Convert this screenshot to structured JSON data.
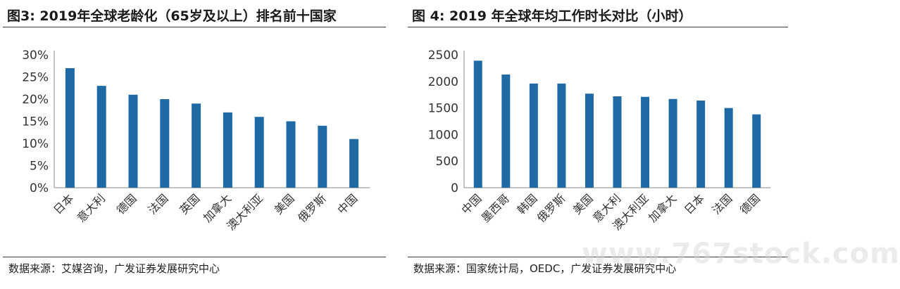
{
  "panels": [
    {
      "title": "图3:  2019年全球老龄化（65岁及以上）排名前十国家",
      "source": "数据来源：艾媒咨询，广发证券发展研究中心"
    },
    {
      "title": "图 4:  2019 年全球年均工作时长对比（小时）",
      "source": "数据来源：国家统计局，OEDC，广发证券发展研究中心"
    }
  ],
  "watermark": "www.767stock.com",
  "chart_data": [
    {
      "type": "bar",
      "categories": [
        "日本",
        "意大利",
        "德国",
        "法国",
        "英国",
        "加拿大",
        "澳大利亚",
        "美国",
        "俄罗斯",
        "中国"
      ],
      "values": [
        27,
        23,
        21,
        20,
        19,
        17,
        16,
        15,
        14,
        11
      ],
      "ylim": [
        0,
        30
      ],
      "yticks": [
        "0%",
        "5%",
        "10%",
        "15%",
        "20%",
        "25%",
        "30%"
      ],
      "title": "",
      "xlabel": "",
      "ylabel": "",
      "grid": false,
      "bar_color": "#1f6aa5"
    },
    {
      "type": "bar",
      "categories": [
        "中国",
        "墨西哥",
        "韩国",
        "俄罗斯",
        "美国",
        "意大利",
        "澳大利亚",
        "加拿大",
        "日本",
        "法国",
        "德国"
      ],
      "values": [
        2390,
        2130,
        1960,
        1960,
        1770,
        1720,
        1710,
        1670,
        1640,
        1500,
        1380
      ],
      "ylim": [
        0,
        2500
      ],
      "yticks": [
        "0",
        "500",
        "1000",
        "1500",
        "2000",
        "2500"
      ],
      "title": "",
      "xlabel": "",
      "ylabel": "",
      "grid": false,
      "bar_color": "#1f6aa5"
    }
  ]
}
